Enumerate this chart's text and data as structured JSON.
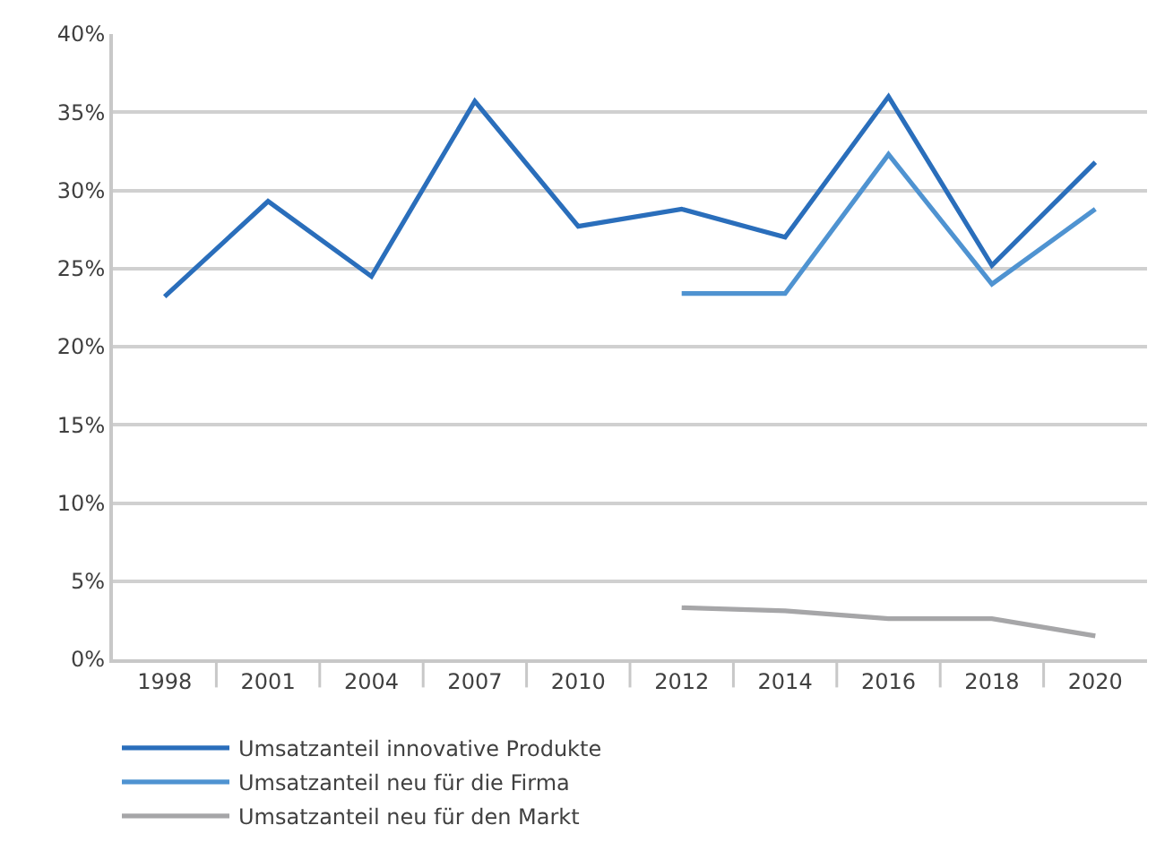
{
  "chart_data": {
    "type": "line",
    "categories": [
      "1998",
      "2001",
      "2004",
      "2007",
      "2010",
      "2012",
      "2014",
      "2016",
      "2018",
      "2020"
    ],
    "series": [
      {
        "name": "Umsatzanteil innovative Produkte",
        "color": "#2a6ebb",
        "values": [
          23.2,
          29.3,
          24.5,
          35.7,
          27.7,
          28.8,
          27.0,
          36.0,
          25.2,
          31.8
        ]
      },
      {
        "name": "Umsatzanteil neu für die Firma",
        "color": "#4f93d1",
        "values": [
          null,
          null,
          null,
          null,
          null,
          23.4,
          23.4,
          32.3,
          24.0,
          28.8
        ]
      },
      {
        "name": "Umsatzanteil neu für den Markt",
        "color": "#a6a6a8",
        "values": [
          null,
          null,
          null,
          null,
          null,
          3.3,
          3.1,
          2.6,
          2.6,
          1.5
        ]
      }
    ],
    "ylim": [
      0,
      40
    ],
    "yticks": [
      {
        "value": 0,
        "label": "0%"
      },
      {
        "value": 5,
        "label": "5%"
      },
      {
        "value": 10,
        "label": "10%"
      },
      {
        "value": 15,
        "label": "15%"
      },
      {
        "value": 20,
        "label": "20%"
      },
      {
        "value": 25,
        "label": "25%"
      },
      {
        "value": 30,
        "label": "30%"
      },
      {
        "value": 35,
        "label": "35%"
      },
      {
        "value": 40,
        "label": "40%"
      }
    ],
    "grid": "y",
    "legend": "bottom",
    "marker": "none",
    "line_style": "solid"
  }
}
